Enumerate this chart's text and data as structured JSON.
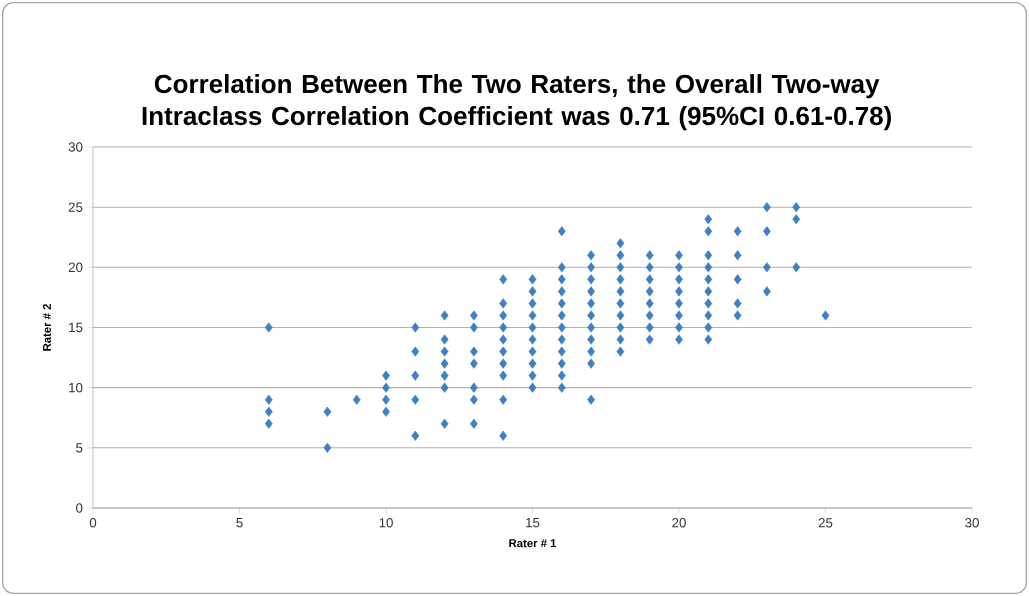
{
  "chart_data": {
    "type": "scatter",
    "title": "Correlation Between The Two Raters, the Overall Two-way Intraclass Correlation Coefficient was 0.71 (95%CI 0.61-0.78)",
    "xlabel": "Rater # 1",
    "ylabel": "Rater # 2",
    "xlim": [
      0,
      30
    ],
    "ylim": [
      0,
      30
    ],
    "xticks": [
      0,
      5,
      10,
      15,
      20,
      25,
      30
    ],
    "yticks": [
      0,
      5,
      10,
      15,
      20,
      25,
      30
    ],
    "grid": "y",
    "marker": "diamond",
    "series": [
      {
        "color": "#3f7fc4",
        "x": [
          6,
          6,
          6,
          6,
          8,
          8,
          9,
          10,
          10,
          10,
          10,
          11,
          11,
          11,
          11,
          11,
          12,
          12,
          12,
          12,
          12,
          12,
          12,
          13,
          13,
          13,
          13,
          13,
          13,
          13,
          14,
          14,
          14,
          14,
          14,
          14,
          14,
          14,
          14,
          14,
          15,
          15,
          15,
          15,
          15,
          15,
          15,
          15,
          15,
          15,
          16,
          16,
          16,
          16,
          16,
          16,
          16,
          16,
          16,
          16,
          16,
          16,
          17,
          17,
          17,
          17,
          17,
          17,
          17,
          17,
          17,
          17,
          17,
          18,
          18,
          18,
          18,
          18,
          18,
          18,
          18,
          18,
          18,
          19,
          19,
          19,
          19,
          19,
          19,
          19,
          19,
          20,
          20,
          20,
          20,
          20,
          20,
          20,
          20,
          21,
          21,
          21,
          21,
          21,
          21,
          21,
          21,
          21,
          21,
          22,
          22,
          22,
          22,
          22,
          23,
          23,
          23,
          23,
          24,
          24,
          24,
          25
        ],
        "values": [
          15,
          9,
          8,
          7,
          8,
          5,
          9,
          11,
          10,
          9,
          8,
          15,
          13,
          11,
          9,
          6,
          16,
          14,
          13,
          12,
          11,
          10,
          7,
          16,
          15,
          13,
          12,
          10,
          9,
          7,
          19,
          17,
          16,
          15,
          14,
          13,
          12,
          11,
          9,
          6,
          19,
          18,
          17,
          16,
          15,
          14,
          13,
          12,
          11,
          10,
          23,
          20,
          19,
          18,
          17,
          16,
          15,
          14,
          13,
          12,
          11,
          10,
          21,
          20,
          19,
          18,
          17,
          16,
          15,
          14,
          13,
          12,
          9,
          22,
          21,
          20,
          19,
          18,
          17,
          16,
          15,
          14,
          13,
          21,
          20,
          19,
          18,
          17,
          16,
          15,
          14,
          21,
          20,
          19,
          18,
          17,
          16,
          15,
          14,
          24,
          23,
          21,
          20,
          19,
          18,
          17,
          16,
          15,
          14,
          23,
          21,
          19,
          17,
          16,
          25,
          23,
          20,
          18,
          25,
          24,
          20,
          16
        ]
      }
    ]
  }
}
